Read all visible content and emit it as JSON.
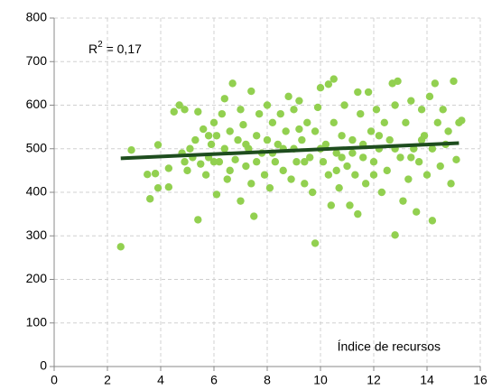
{
  "chart_data": {
    "type": "scatter",
    "annotation": {
      "text": "R",
      "sup": "2",
      "rest": " = 0,17"
    },
    "xlabel": "Índice de recursos",
    "xlim": [
      0,
      16
    ],
    "xticks": [
      0,
      2,
      4,
      6,
      8,
      10,
      12,
      14,
      16
    ],
    "ylim": [
      0,
      800
    ],
    "yticks": [
      0,
      100,
      200,
      300,
      400,
      500,
      600,
      700,
      800
    ],
    "grid": true,
    "series": [
      {
        "color": "#92d050",
        "x": [
          2.5,
          2.9,
          3.5,
          3.9,
          3.8,
          3.9,
          3.6,
          4.3,
          4.3,
          4.5,
          4.7,
          4.9,
          4.8,
          4.9,
          5.0,
          5.1,
          5.3,
          5.4,
          5.4,
          5.5,
          5.6,
          5.7,
          5.8,
          5.9,
          6.0,
          6.1,
          6.1,
          6.2,
          6.3,
          6.4,
          6.4,
          6.5,
          6.6,
          6.7,
          6.8,
          6.9,
          7.0,
          7.0,
          7.1,
          7.2,
          7.3,
          7.4,
          7.4,
          7.5,
          7.6,
          7.7,
          7.8,
          7.9,
          8.0,
          8.0,
          8.1,
          8.2,
          8.3,
          8.4,
          8.5,
          8.6,
          8.7,
          8.8,
          8.9,
          9.0,
          9.0,
          9.1,
          9.2,
          9.3,
          9.4,
          9.5,
          9.6,
          9.7,
          9.8,
          9.8,
          9.9,
          10.0,
          10.1,
          10.2,
          10.3,
          10.3,
          10.4,
          10.5,
          10.5,
          10.6,
          10.7,
          10.8,
          10.9,
          11.0,
          11.1,
          11.2,
          11.3,
          11.4,
          11.4,
          11.5,
          11.6,
          11.7,
          11.8,
          11.9,
          12.0,
          12.1,
          12.2,
          12.3,
          12.4,
          12.5,
          12.6,
          12.7,
          12.8,
          12.8,
          12.9,
          13.0,
          13.1,
          13.2,
          13.3,
          13.4,
          13.5,
          13.6,
          13.7,
          13.8,
          13.9,
          14.0,
          14.1,
          14.2,
          14.2,
          14.3,
          14.4,
          14.5,
          14.6,
          14.7,
          14.8,
          15.0,
          15.1,
          15.2,
          15.3,
          14.9,
          6.0,
          6.6,
          7.2,
          8.2,
          8.6,
          9.4,
          10.0,
          10.8,
          11.6,
          12.2,
          12.8,
          13.4,
          13.8,
          5.2,
          5.8,
          9.2,
          10.6,
          11.2,
          12.0,
          7.6
        ],
        "y": [
          275,
          497,
          441,
          509,
          443,
          410,
          385,
          455,
          412,
          585,
          600,
          590,
          490,
          470,
          450,
          500,
          520,
          585,
          337,
          465,
          545,
          440,
          480,
          510,
          560,
          530,
          395,
          470,
          580,
          615,
          500,
          430,
          540,
          650,
          475,
          520,
          380,
          590,
          555,
          460,
          500,
          632,
          420,
          345,
          530,
          580,
          490,
          440,
          520,
          600,
          410,
          560,
          470,
          510,
          580,
          450,
          540,
          620,
          430,
          500,
          590,
          470,
          610,
          520,
          420,
          560,
          480,
          400,
          283,
          540,
          595,
          640,
          470,
          510,
          648,
          440,
          370,
          660,
          560,
          490,
          410,
          530,
          600,
          460,
          370,
          520,
          440,
          630,
          350,
          580,
          480,
          420,
          630,
          540,
          470,
          590,
          500,
          400,
          560,
          450,
          520,
          650,
          302,
          600,
          655,
          480,
          380,
          560,
          430,
          610,
          500,
          355,
          470,
          590,
          530,
          440,
          620,
          335,
          500,
          650,
          560,
          460,
          590,
          510,
          540,
          655,
          475,
          560,
          565,
          420,
          470,
          450,
          510,
          490,
          500,
          470,
          500,
          480,
          510,
          530,
          500,
          480,
          520,
          480,
          530,
          545,
          450,
          490,
          440,
          470
        ]
      }
    ],
    "trendline": {
      "color": "#1e4d1e",
      "x": [
        2.5,
        15.2
      ],
      "y": [
        478,
        513
      ]
    }
  }
}
